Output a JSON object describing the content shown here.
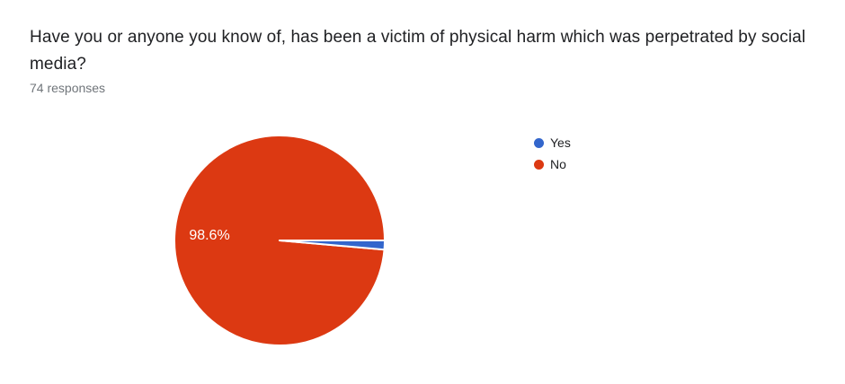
{
  "chart_data": {
    "type": "pie",
    "title": "Have you or anyone you know of, has been a victim of physical harm which was perpetrated by social media?",
    "subtitle": "74 responses",
    "labels": [
      "Yes",
      "No"
    ],
    "values_percent": [
      1.4,
      98.6
    ],
    "colors": [
      "#3366cc",
      "#dc3912"
    ],
    "slice_labels": [
      "",
      "98.6%"
    ],
    "slice_border_color": "#ffffff",
    "legend_position": "right",
    "start_angle_deg": 0,
    "direction": "clockwise"
  },
  "style_colors": {
    "title_text": "#202124",
    "subtitle_text": "#70757a",
    "legend_text": "#202124",
    "slice_label_text": "#ffffff",
    "background": "#ffffff"
  }
}
